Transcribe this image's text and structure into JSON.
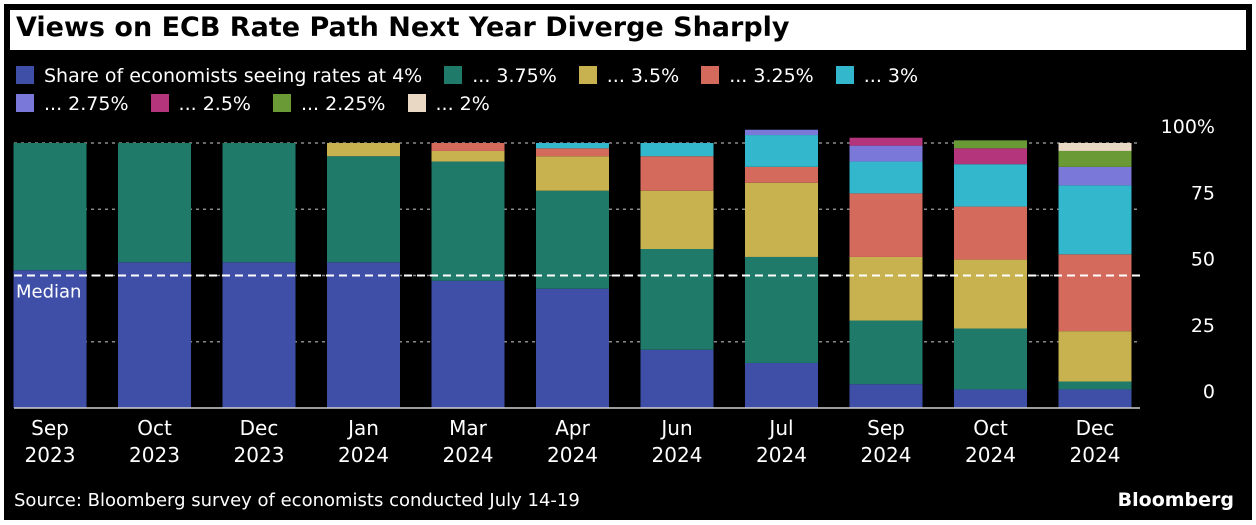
{
  "title": "Views on ECB Rate Path Next Year Diverge Sharply",
  "source": "Source: Bloomberg survey of economists conducted July 14-19",
  "brand": "Bloomberg",
  "median_label": "Median",
  "colors": {
    "background": "#000000",
    "text": "#ffffff",
    "grid": "#8a8a8a",
    "median_line": "#ffffff"
  },
  "chart_data": {
    "type": "bar",
    "stacked": true,
    "categories": [
      [
        "Sep",
        "2023"
      ],
      [
        "Oct",
        "2023"
      ],
      [
        "Dec",
        "2023"
      ],
      [
        "Jan",
        "2024"
      ],
      [
        "Mar",
        "2024"
      ],
      [
        "Apr",
        "2024"
      ],
      [
        "Jun",
        "2024"
      ],
      [
        "Jul",
        "2024"
      ],
      [
        "Sep",
        "2024"
      ],
      [
        "Oct",
        "2024"
      ],
      [
        "Dec",
        "2024"
      ]
    ],
    "ylim": [
      0,
      100
    ],
    "y_ticks": [
      0,
      25,
      50,
      75,
      100
    ],
    "y_tick_labels": [
      "0",
      "25",
      "50",
      "75",
      "100%"
    ],
    "y_axis_side": "right",
    "grid": true,
    "median_value": 50,
    "legend_position": "top",
    "series": [
      {
        "name": "Share of economists seeing rates at 4%",
        "color": "#3f4fa8",
        "values": [
          52,
          55,
          55,
          55,
          48,
          45,
          22,
          17,
          9,
          7,
          7
        ]
      },
      {
        "name": "... 3.75%",
        "color": "#1f7a6a",
        "values": [
          48,
          45,
          45,
          40,
          45,
          37,
          38,
          40,
          24,
          23,
          3
        ]
      },
      {
        "name": "... 3.5%",
        "color": "#c8b24f",
        "values": [
          0,
          0,
          0,
          5,
          4,
          13,
          22,
          28,
          24,
          26,
          19
        ]
      },
      {
        "name": "... 3.25%",
        "color": "#d46a5c",
        "values": [
          0,
          0,
          0,
          0,
          3,
          3,
          13,
          6,
          24,
          20,
          29
        ]
      },
      {
        "name": "... 3%",
        "color": "#33b7cc",
        "values": [
          0,
          0,
          0,
          0,
          0,
          2,
          5,
          12,
          12,
          16,
          26
        ]
      },
      {
        "name": "... 2.75%",
        "color": "#7a78d8",
        "values": [
          0,
          0,
          0,
          0,
          0,
          0,
          0,
          2,
          6,
          0,
          7
        ]
      },
      {
        "name": "... 2.5%",
        "color": "#b5357c",
        "values": [
          0,
          0,
          0,
          0,
          0,
          0,
          0,
          0,
          3,
          6,
          0
        ]
      },
      {
        "name": "... 2.25%",
        "color": "#6a9a36",
        "values": [
          0,
          0,
          0,
          0,
          0,
          0,
          0,
          0,
          0,
          3,
          6
        ]
      },
      {
        "name": "... 2%",
        "color": "#e8d8c4",
        "values": [
          0,
          0,
          0,
          0,
          0,
          0,
          0,
          0,
          0,
          0,
          3
        ]
      }
    ]
  }
}
